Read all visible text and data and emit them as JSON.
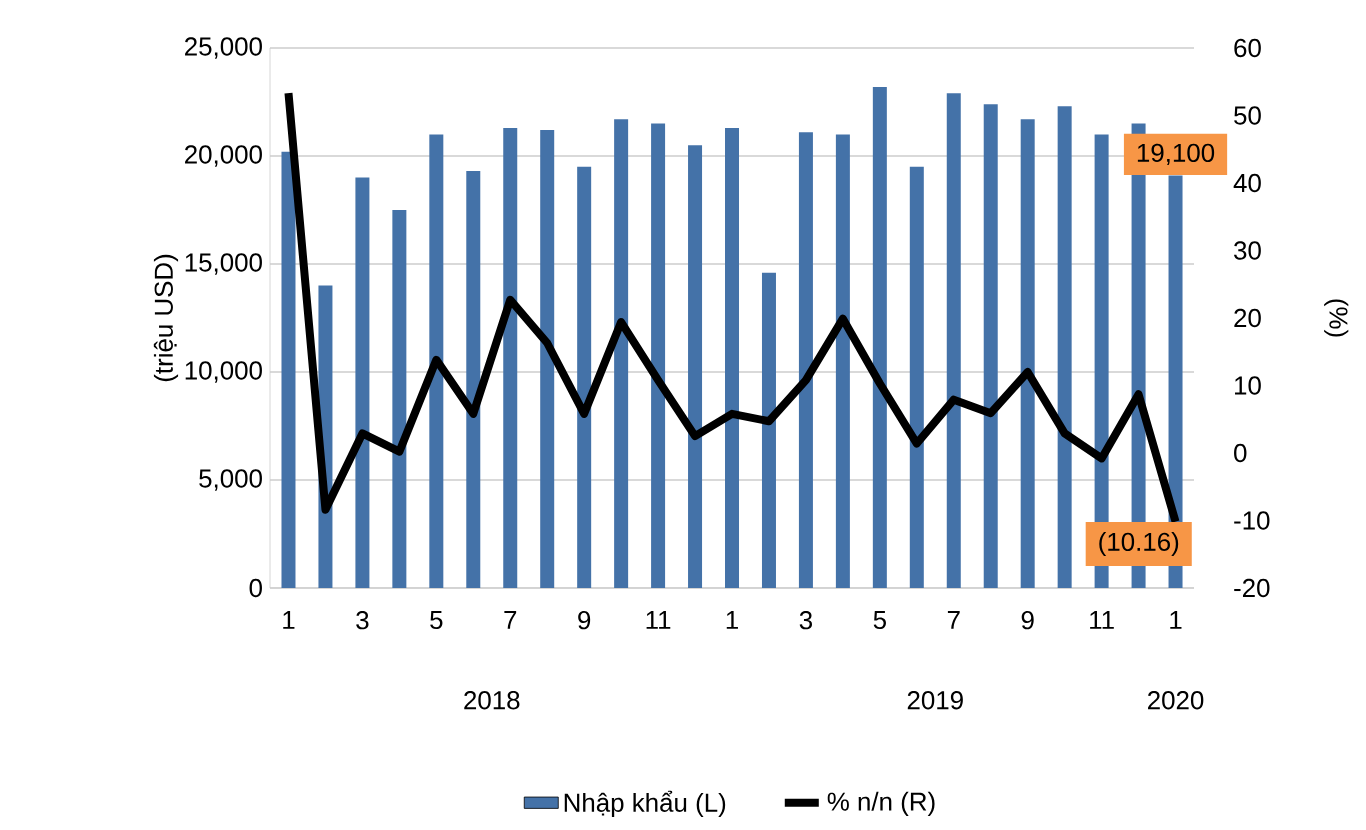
{
  "chart_data": {
    "type": "bar",
    "categories": [
      "1",
      null,
      "3",
      null,
      "5",
      null,
      "7",
      null,
      "9",
      null,
      "11",
      null,
      "1",
      null,
      "3",
      null,
      "5",
      null,
      "7",
      null,
      "9",
      null,
      "11",
      null,
      "1"
    ],
    "series": [
      {
        "name": "Nhập khẩu (L)",
        "color": "#4472a8",
        "values": [
          20200,
          14000,
          19000,
          17500,
          21000,
          19300,
          21300,
          21200,
          19500,
          21700,
          21500,
          20500,
          21300,
          14600,
          21100,
          21000,
          23200,
          19500,
          22900,
          22400,
          21700,
          22300,
          21000,
          21500,
          19100
        ],
        "value_labels": [
          null,
          null,
          null,
          null,
          null,
          null,
          null,
          null,
          null,
          null,
          null,
          null,
          null,
          null,
          null,
          null,
          null,
          null,
          null,
          null,
          null,
          null,
          null,
          null,
          "19,100"
        ]
      },
      {
        "name": "% n/n (R)",
        "type": "line",
        "axis": "y2",
        "color": "#000000",
        "values": [
          53.3,
          -8.4,
          2.9,
          0.2,
          13.8,
          5.8,
          22.7,
          16.3,
          5.8,
          19.4,
          10.8,
          2.5,
          5.8,
          4.7,
          10.8,
          19.9,
          10.3,
          1.4,
          7.9,
          5.9,
          12.0,
          2.9,
          -0.8,
          8.7,
          -10.16
        ],
        "value_labels": [
          null,
          null,
          null,
          null,
          null,
          null,
          null,
          null,
          null,
          null,
          null,
          null,
          null,
          null,
          null,
          null,
          null,
          null,
          null,
          null,
          null,
          null,
          null,
          null,
          "(10.16)"
        ]
      }
    ],
    "ylabel": "(triệu USD)",
    "y2label": "(%)",
    "ylim": [
      0,
      25000
    ],
    "yticks": [
      0,
      {
        "value": 5000,
        "label": "5,000"
      },
      {
        "value": 10000,
        "label": "10,000"
      },
      {
        "value": 15000,
        "label": "15,000"
      },
      {
        "value": 20000,
        "label": "20,000"
      },
      {
        "value": 25000,
        "label": "25,000"
      }
    ],
    "y2lim": [
      -20,
      60
    ],
    "y2ticks": [
      -20,
      -10,
      0,
      10,
      20,
      30,
      40,
      50,
      60
    ],
    "annotations": [
      "2018",
      "2019",
      "2020"
    ],
    "grid": "y",
    "legend": "bottom",
    "marker": "none",
    "line_style": "solid"
  }
}
